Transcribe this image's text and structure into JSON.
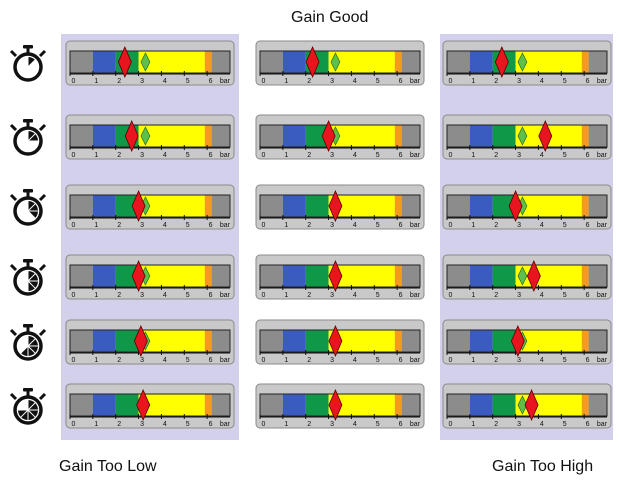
{
  "labels": {
    "top": "Gain Good",
    "bottom_left": "Gain Too Low",
    "bottom_right": "Gain Too High"
  },
  "gauge": {
    "scale_min": 0,
    "scale_max": 7,
    "tick_labels": [
      "0",
      "1",
      "2",
      "3",
      "4",
      "5",
      "6"
    ],
    "unit": "bar",
    "bands": [
      {
        "from": 0,
        "to": 1,
        "color": "#8c8c8c"
      },
      {
        "from": 1,
        "to": 2,
        "color": "#3a5cc0"
      },
      {
        "from": 2,
        "to": 3,
        "color": "#0e9848"
      },
      {
        "from": 3,
        "to": 5.9,
        "color": "#ffff00"
      },
      {
        "from": 5.9,
        "to": 6.2,
        "color": "#f59a1c"
      },
      {
        "from": 6.2,
        "to": 7,
        "color": "#8c8c8c"
      }
    ]
  },
  "colors": {
    "panel_background": "#d2d0ea",
    "actual_marker": "#e8141e",
    "setpoint_marker": "#5cc04a"
  },
  "timer_fill_fractions": [
    0.125,
    0.25,
    0.375,
    0.5,
    0.625,
    0.75
  ],
  "gauge_grid": [
    [
      {
        "actual": 2.4,
        "setpoint": 3.3
      },
      {
        "actual": 2.3,
        "setpoint": 3.3
      },
      {
        "actual": 2.4,
        "setpoint": 3.3
      }
    ],
    [
      {
        "actual": 2.7,
        "setpoint": 3.3
      },
      {
        "actual": 3.0,
        "setpoint": 3.3
      },
      {
        "actual": 4.3,
        "setpoint": 3.3
      }
    ],
    [
      {
        "actual": 3.0,
        "setpoint": 3.3
      },
      {
        "actual": 3.3,
        "setpoint": 3.3
      },
      {
        "actual": 3.0,
        "setpoint": 3.3
      }
    ],
    [
      {
        "actual": 3.0,
        "setpoint": 3.3
      },
      {
        "actual": 3.3,
        "setpoint": 3.3
      },
      {
        "actual": 3.8,
        "setpoint": 3.3
      }
    ],
    [
      {
        "actual": 3.1,
        "setpoint": 3.3
      },
      {
        "actual": 3.3,
        "setpoint": 3.3
      },
      {
        "actual": 3.1,
        "setpoint": 3.3
      }
    ],
    [
      {
        "actual": 3.2,
        "setpoint": 3.3
      },
      {
        "actual": 3.3,
        "setpoint": 3.3
      },
      {
        "actual": 3.7,
        "setpoint": 3.3
      }
    ]
  ]
}
